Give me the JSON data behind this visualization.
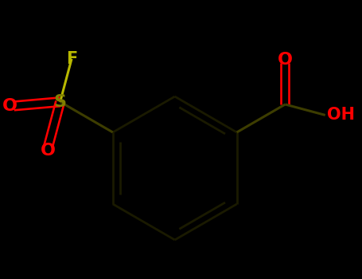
{
  "background_color": "#000000",
  "bond_color": "#3d3d00",
  "ring_bond_color": "#1a1a00",
  "atom_colors": {
    "O": "#ff0000",
    "F": "#b8b800",
    "S": "#808000",
    "C": "#3d3d00",
    "H": "#ff0000"
  },
  "figsize": [
    4.55,
    3.5
  ],
  "dpi": 100,
  "line_width": 2.2,
  "ring_lw": 2.0
}
